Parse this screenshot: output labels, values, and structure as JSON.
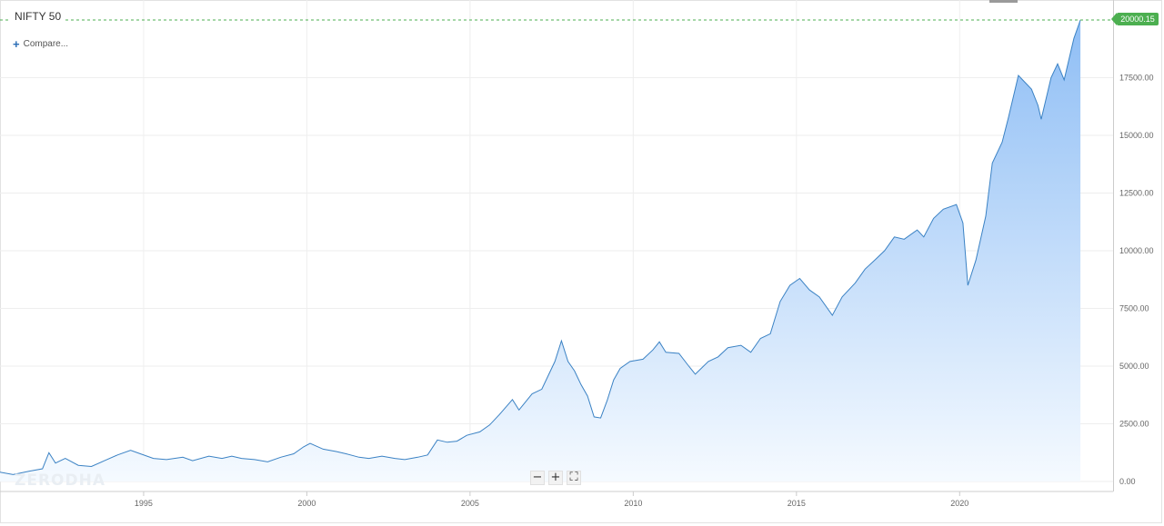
{
  "header": {
    "title": "NIFTY 50",
    "compare_label": "Compare..."
  },
  "watermark": "ZERODHA",
  "last_price": {
    "label": "20000.15",
    "value": 20000.15,
    "color": "#4caf50"
  },
  "zoom": {
    "zoom_out": "−",
    "zoom_in": "+",
    "fullscreen": "⛶"
  },
  "colors": {
    "line": "#3b82c4",
    "area_top": "#8fbef5",
    "area_bottom": "#f5faff",
    "grid": "#eeeeee",
    "last_price_dash": "#4caf50"
  },
  "chart_data": {
    "type": "area",
    "title": "NIFTY 50",
    "xlabel": "",
    "ylabel": "",
    "xlim": [
      1990.6,
      2024.7
    ],
    "ylim": [
      0,
      20000
    ],
    "grid": true,
    "x_ticks": [
      1995,
      2000,
      2005,
      2010,
      2015,
      2020
    ],
    "x_tick_labels": [
      "1995",
      "2000",
      "2005",
      "2010",
      "2015",
      "2020"
    ],
    "y_ticks": [
      0,
      2500,
      5000,
      7500,
      10000,
      12500,
      15000,
      17500
    ],
    "y_tick_labels": [
      "0.00",
      "2500.00",
      "5000.00",
      "7500.00",
      "10000.00",
      "12500.00",
      "15000.00",
      "17500.00"
    ],
    "series": [
      {
        "x": [
          1990.6,
          1991.0,
          1991.5,
          1991.9,
          1992.1,
          1992.3,
          1992.6,
          1993.0,
          1993.4,
          1993.8,
          1994.2,
          1994.6,
          1994.9,
          1995.3,
          1995.7,
          1996.2,
          1996.5,
          1997.0,
          1997.4,
          1997.7,
          1998.0,
          1998.4,
          1998.8,
          1999.2,
          1999.6,
          1999.9,
          2000.1,
          2000.5,
          2000.9,
          2001.2,
          2001.6,
          2001.9,
          2002.3,
          2002.7,
          2003.0,
          2003.4,
          2003.7,
          2004.0,
          2004.3,
          2004.6,
          2004.9,
          2005.3,
          2005.6,
          2005.9,
          2006.3,
          2006.5,
          2006.9,
          2007.2,
          2007.6,
          2007.8,
          2008.0,
          2008.2,
          2008.4,
          2008.6,
          2008.8,
          2009.0,
          2009.2,
          2009.4,
          2009.6,
          2009.9,
          2010.3,
          2010.6,
          2010.8,
          2011.0,
          2011.4,
          2011.7,
          2011.9,
          2012.3,
          2012.6,
          2012.9,
          2013.3,
          2013.6,
          2013.9,
          2014.2,
          2014.5,
          2014.8,
          2015.1,
          2015.4,
          2015.7,
          2016.1,
          2016.4,
          2016.8,
          2017.1,
          2017.4,
          2017.7,
          2018.0,
          2018.3,
          2018.7,
          2018.9,
          2019.2,
          2019.5,
          2019.9,
          2020.1,
          2020.25,
          2020.5,
          2020.8,
          2021.0,
          2021.3,
          2021.5,
          2021.8,
          2022.0,
          2022.2,
          2022.4,
          2022.5,
          2022.8,
          2023.0,
          2023.2,
          2023.5,
          2023.7
        ],
        "y": [
          400,
          300,
          450,
          550,
          1250,
          800,
          1000,
          700,
          650,
          900,
          1150,
          1350,
          1200,
          1000,
          950,
          1050,
          900,
          1100,
          1000,
          1100,
          1000,
          950,
          850,
          1050,
          1200,
          1500,
          1650,
          1400,
          1300,
          1200,
          1050,
          1000,
          1100,
          1000,
          950,
          1050,
          1150,
          1800,
          1700,
          1750,
          2000,
          2150,
          2450,
          2900,
          3550,
          3100,
          3800,
          4000,
          5200,
          6100,
          5200,
          4800,
          4200,
          3700,
          2800,
          2750,
          3500,
          4400,
          4900,
          5200,
          5300,
          5700,
          6050,
          5600,
          5550,
          5000,
          4650,
          5200,
          5400,
          5800,
          5900,
          5600,
          6200,
          6400,
          7800,
          8500,
          8800,
          8300,
          8000,
          7200,
          8000,
          8600,
          9200,
          9600,
          10000,
          10600,
          10500,
          10900,
          10600,
          11400,
          11800,
          12000,
          11200,
          8500,
          9600,
          11500,
          13800,
          14700,
          15800,
          17600,
          17300,
          17000,
          16300,
          15700,
          17500,
          18100,
          17400,
          19200,
          20000
        ]
      }
    ]
  }
}
